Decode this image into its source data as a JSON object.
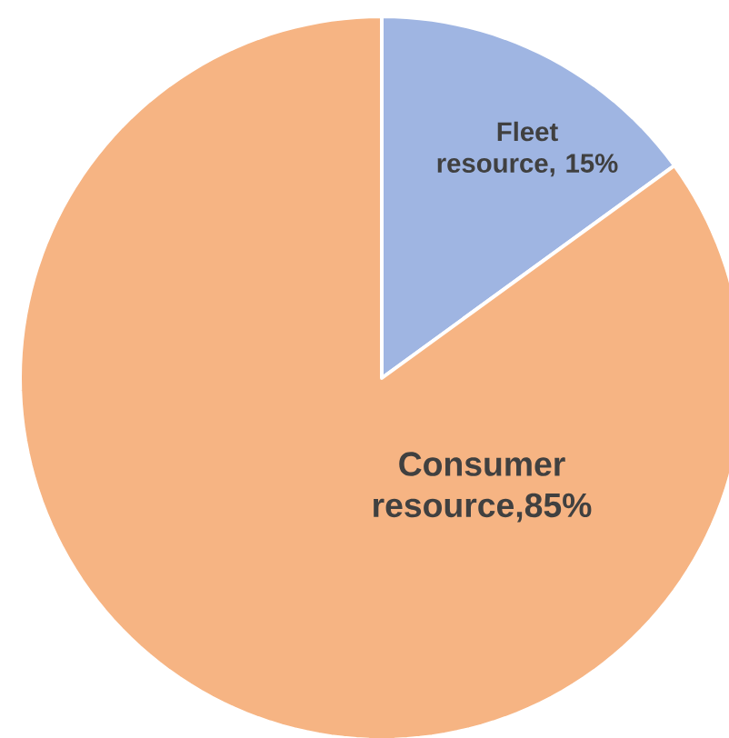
{
  "chart_data": {
    "type": "pie",
    "categories": [
      "Fleet resource",
      "Consumer resource"
    ],
    "values": [
      15,
      85
    ],
    "value_labels": [
      ", 15%",
      ",85%"
    ],
    "colors": [
      "#9fb5e2",
      "#f6b483"
    ]
  }
}
